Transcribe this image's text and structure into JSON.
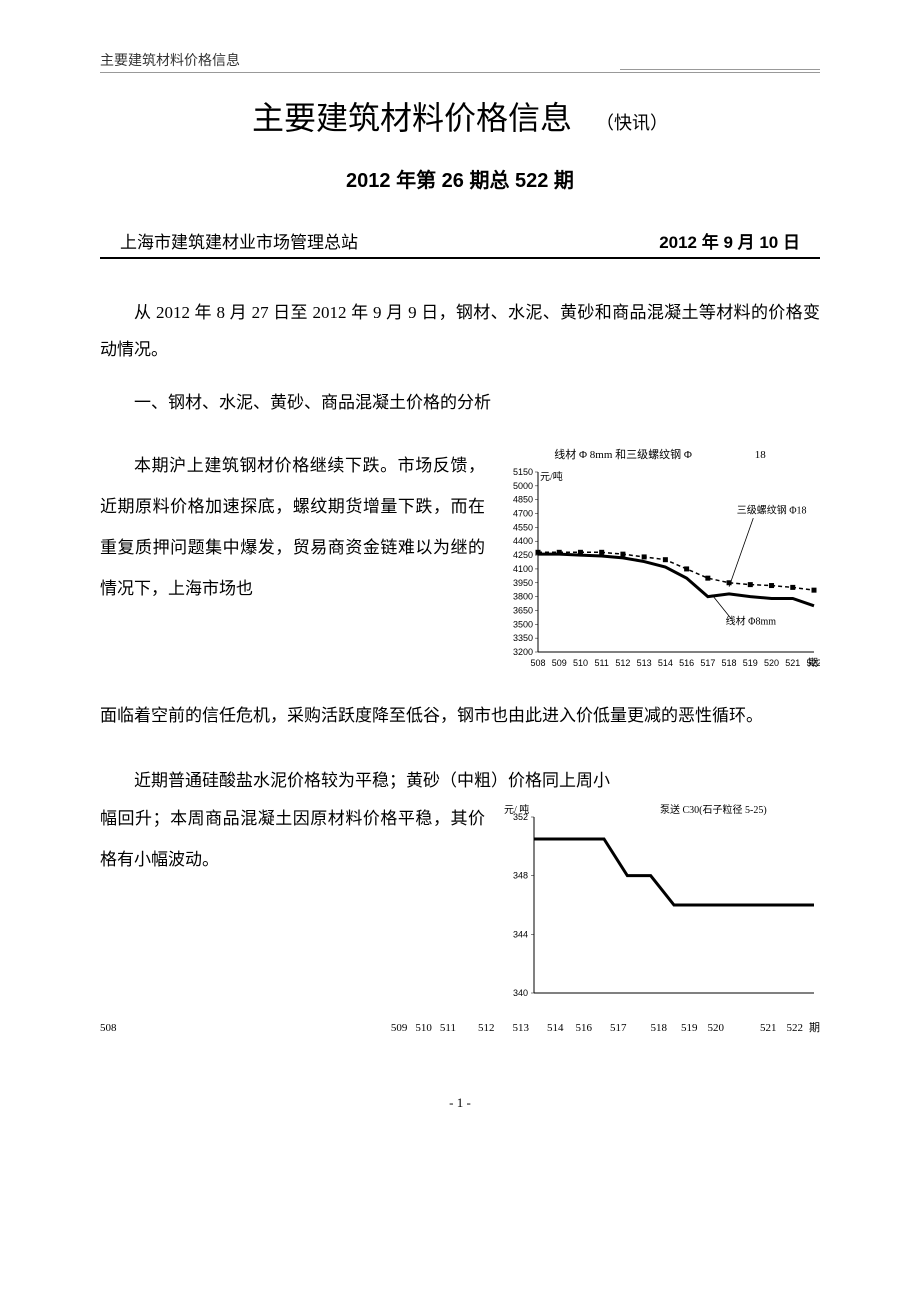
{
  "header": {
    "small_title": "主要建筑材料价格信息"
  },
  "title": {
    "main": "主要建筑材料价格信息",
    "sub": "（快讯）"
  },
  "issue": "2012 年第 26 期总 522 期",
  "publisher": {
    "org": "上海市建筑建材业市场管理总站",
    "date": "2012 年 9 月 10 日"
  },
  "intro": "从 2012 年 8 月 27 日至 2012 年 9 月 9 日，钢材、水泥、黄砂和商品混凝土等材料的价格变动情况。",
  "section1_title": "一、钢材、水泥、黄砂、商品混凝土价格的分析",
  "para1_a": "本期沪上建筑钢材价格继续下跌。市场反馈，近期原料价格加速探底，螺纹期货增量下跌，而在重复质押问题集中爆发，贸易商资金链难以为继的情况下，上海市场也",
  "para1_b": "面临着空前的信任危机，采购活跃度降至低谷，钢市也由此进入价低量更减的恶性循环。",
  "para2_a": "近期普通硅酸盐水泥价格较为平稳；黄砂（中粗）价格同上周小",
  "para2_b": "幅回升；本周商品混凝土因原材料价格平稳，其价格有小幅波动。",
  "chart1": {
    "title": "线材 Φ 8mm 和三级螺纹钢 Φ",
    "y_unit": "元/吨",
    "y_ticks": [
      "5150",
      "5000",
      "4850",
      "4700",
      "4550",
      "4400",
      "4250",
      "4100",
      "3950",
      "3800",
      "3650",
      "3500",
      "3350",
      "3200"
    ],
    "ylim": [
      3200,
      5150
    ],
    "x_ticks": [
      "508",
      "509",
      "510",
      "511",
      "512",
      "513",
      "514",
      "516",
      "517",
      "518",
      "519",
      "520",
      "521",
      "522"
    ],
    "x_suffix": "期",
    "series_rebar": {
      "label": "三级螺纹钢 Φ18",
      "label_extra": "18",
      "values": [
        4280,
        4280,
        4280,
        4280,
        4260,
        4230,
        4200,
        4100,
        4000,
        3950,
        3930,
        3920,
        3900,
        3870
      ],
      "color": "#000000",
      "marker": "square",
      "marker_size": 5,
      "line_width": 1.5,
      "dash": "4,3"
    },
    "series_wire": {
      "label": "线材 Φ8mm",
      "values": [
        4260,
        4260,
        4250,
        4240,
        4220,
        4180,
        4120,
        4000,
        3800,
        3830,
        3800,
        3780,
        3780,
        3700
      ],
      "color": "#000000",
      "line_width": 3
    },
    "background_color": "#ffffff"
  },
  "chart2": {
    "title": "泵送 C30(石子粒径  5-25)",
    "y_unit": "元/ 吨",
    "y_ticks": [
      "352",
      "348",
      "344",
      "340"
    ],
    "ylim": [
      340,
      352
    ],
    "x_ticks": [
      "509",
      "510",
      "511",
      "512",
      "513",
      "514",
      "516",
      "517",
      "518",
      "519",
      "520",
      "521",
      "522"
    ],
    "x_first": "508",
    "x_suffix": "期",
    "series": {
      "values": [
        350.5,
        350.5,
        350.5,
        350.5,
        348,
        348,
        346,
        346,
        346,
        346,
        346,
        346,
        346
      ],
      "color": "#000000",
      "line_width": 3
    },
    "background_color": "#ffffff"
  },
  "page_number": "- 1 -"
}
